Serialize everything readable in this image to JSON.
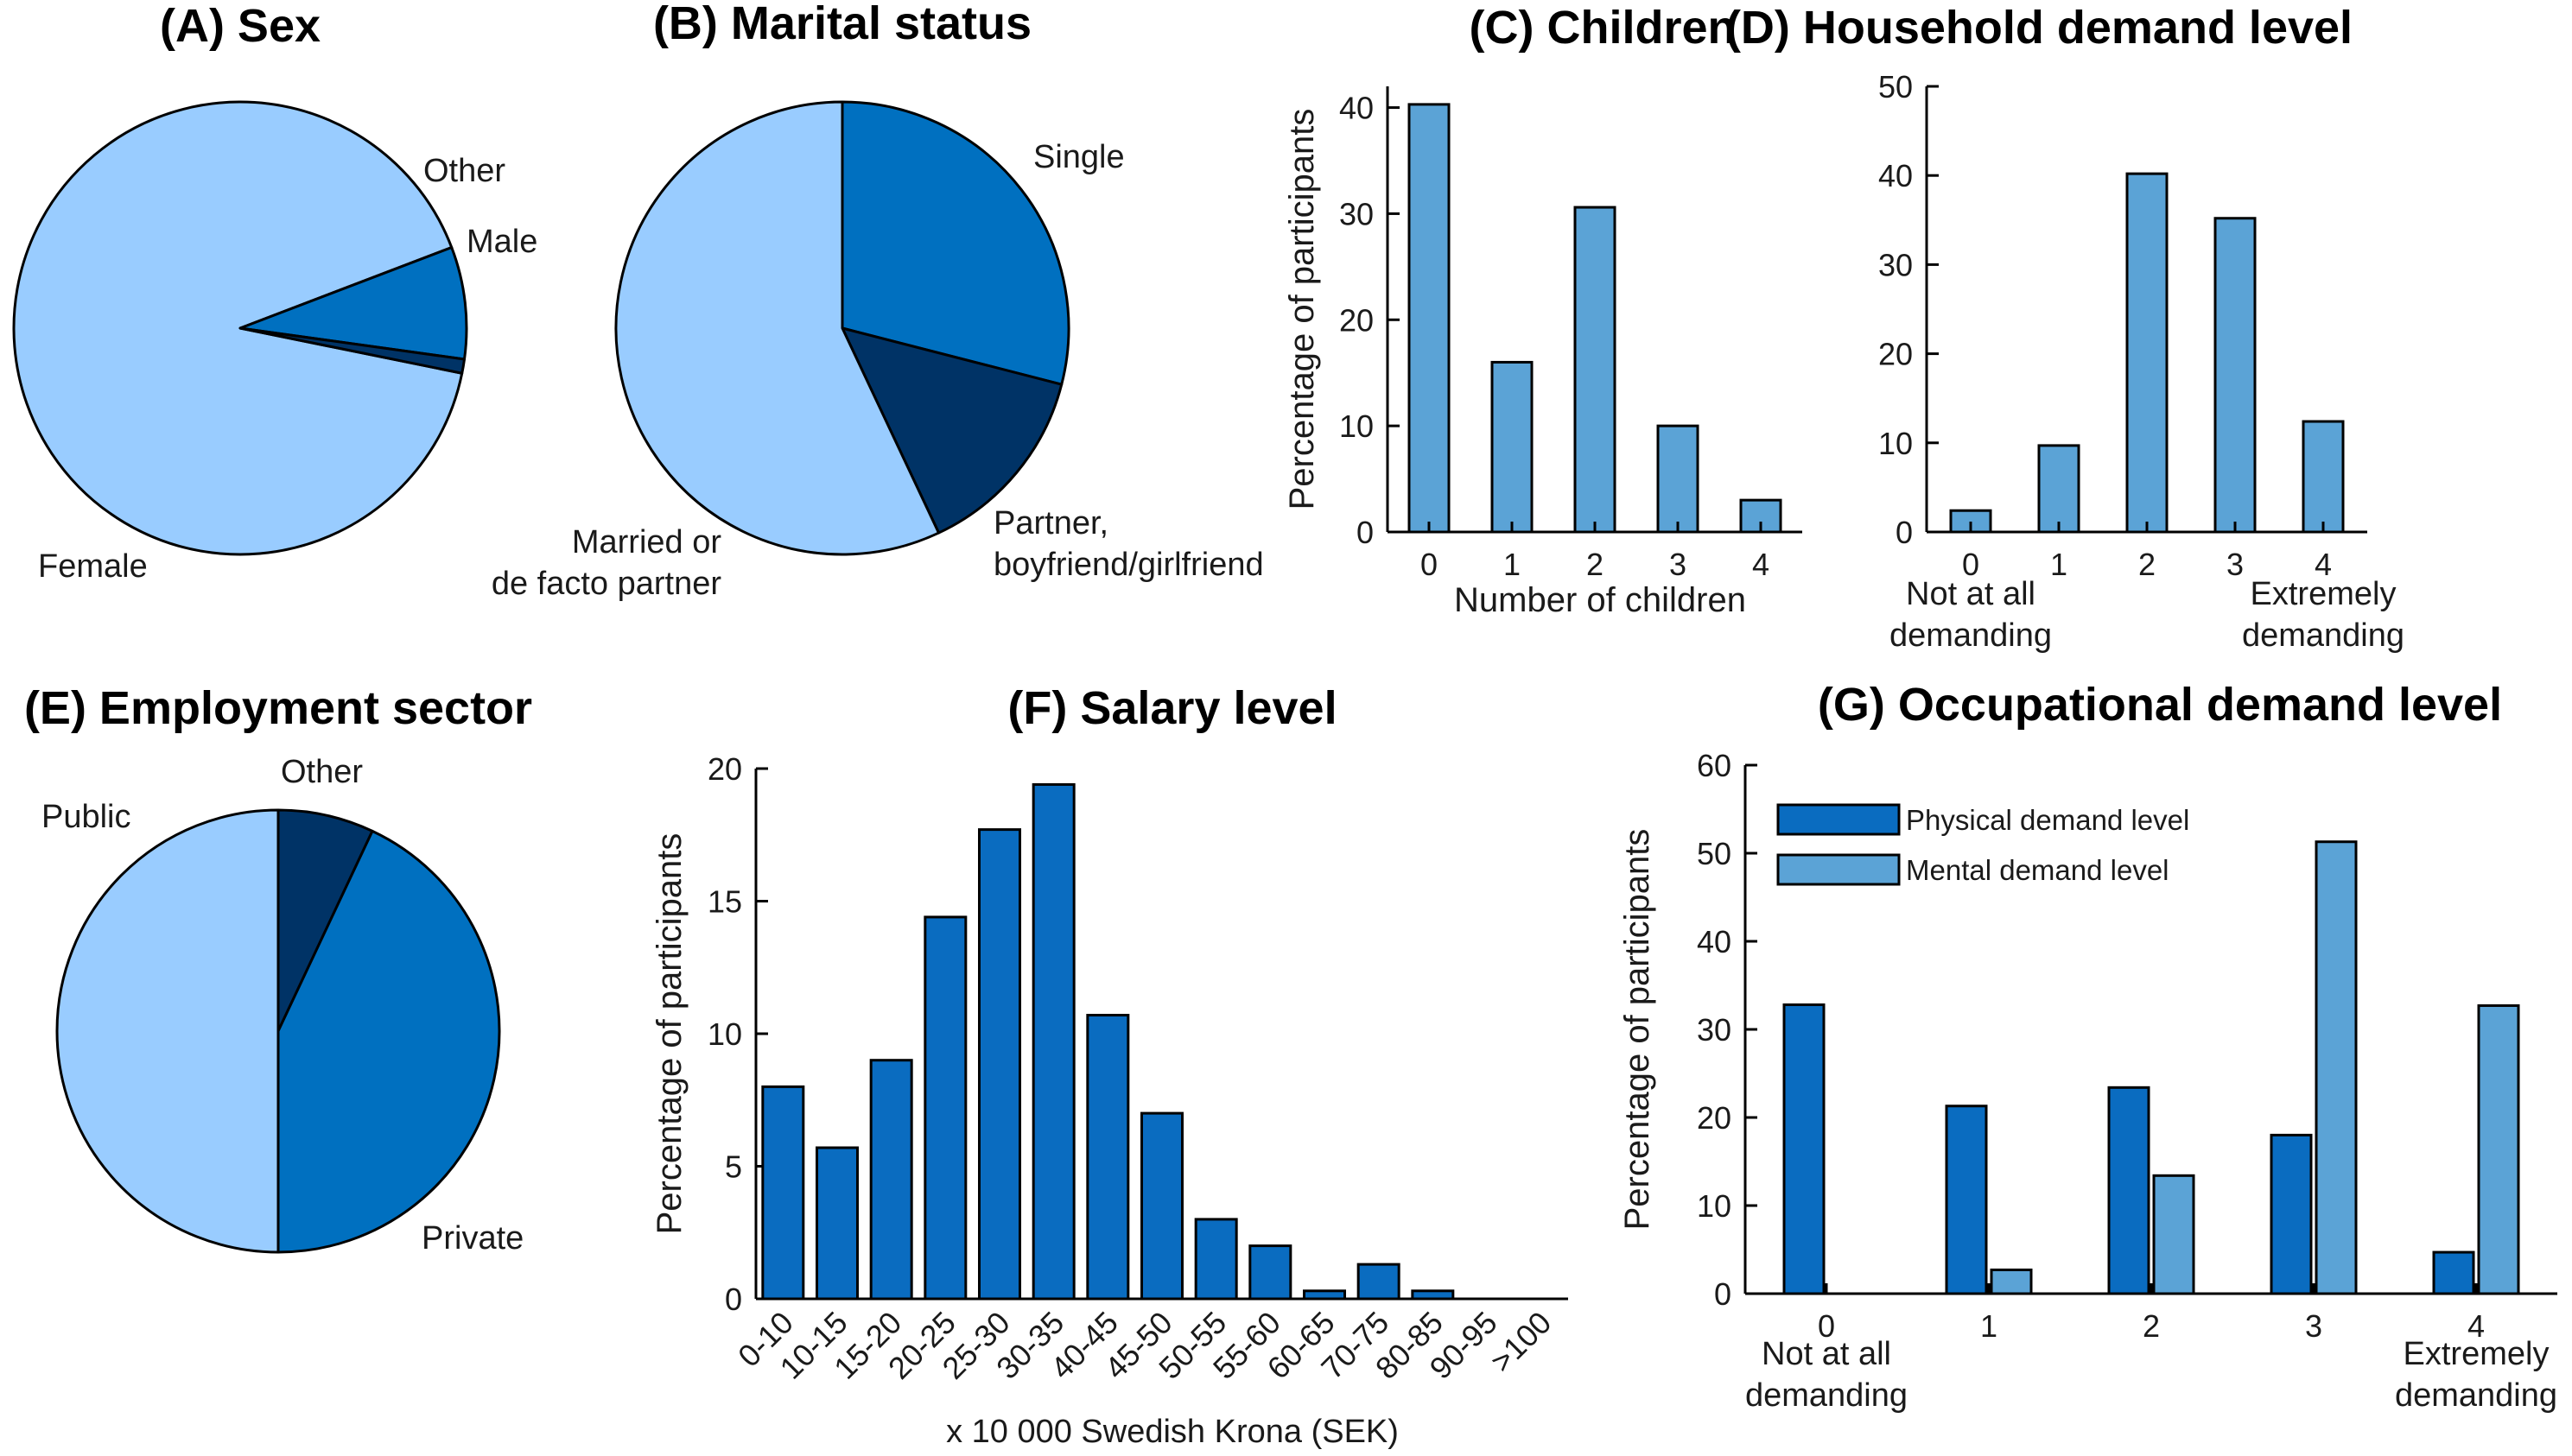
{
  "colors": {
    "light": "#99ccff",
    "medium": "#0070c0",
    "dark": "#003366",
    "bar_light": "#5ba3d6",
    "bar_dark": "#0a6cc0",
    "stroke": "#000000"
  },
  "chart_data": [
    {
      "id": "A",
      "type": "pie",
      "title": "(A) Sex",
      "slices": [
        {
          "label": "Female",
          "value": 91,
          "color": "light"
        },
        {
          "label": "Male",
          "value": 8,
          "color": "medium"
        },
        {
          "label": "Other",
          "value": 1,
          "color": "dark"
        }
      ]
    },
    {
      "id": "B",
      "type": "pie",
      "title": "(B) Marital status",
      "slices": [
        {
          "label": "Single",
          "value": 29,
          "color": "medium"
        },
        {
          "label": "Partner,",
          "label2": "boyfriend/girlfriend",
          "value": 14,
          "color": "dark"
        },
        {
          "label": "Married or",
          "label2": "de facto partner",
          "value": 57,
          "color": "light"
        }
      ]
    },
    {
      "id": "C",
      "type": "bar",
      "title": "(C) Children",
      "categories": [
        "0",
        "1",
        "2",
        "3",
        "4"
      ],
      "values": [
        40.3,
        16,
        30.6,
        10,
        3
      ],
      "xlabel": "Number of children",
      "ylabel": "Percentage of participants",
      "ylim": [
        0,
        42
      ],
      "yticks": [
        0,
        10,
        20,
        30,
        40
      ]
    },
    {
      "id": "D",
      "type": "bar",
      "title": "(D) Household demand level",
      "categories": [
        "0",
        "1",
        "2",
        "3",
        "4"
      ],
      "values": [
        2.4,
        9.7,
        40.2,
        35.2,
        12.4
      ],
      "xlabel_left": [
        "Not at all",
        "demanding"
      ],
      "xlabel_right": [
        "Extremely",
        "demanding"
      ],
      "ylabel": "",
      "ylim": [
        0,
        50
      ],
      "yticks": [
        0,
        10,
        20,
        30,
        40,
        50
      ]
    },
    {
      "id": "E",
      "type": "pie",
      "title": "(E) Employment sector",
      "slices": [
        {
          "label": "Other",
          "value": 7,
          "color": "dark"
        },
        {
          "label": "Private",
          "value": 43,
          "color": "medium"
        },
        {
          "label": "Public",
          "value": 50,
          "color": "light"
        }
      ]
    },
    {
      "id": "F",
      "type": "bar",
      "title": "(F) Salary level",
      "categories": [
        "0-10",
        "10-15",
        "15-20",
        "20-25",
        "25-30",
        "30-35",
        "40-45",
        "45-50",
        "50-55",
        "55-60",
        "60-65",
        "70-75",
        "80-85",
        "90-95",
        ">100"
      ],
      "values": [
        8,
        5.7,
        9,
        14.4,
        17.7,
        19.4,
        10.7,
        7,
        3,
        2,
        0.3,
        1.3,
        0.3,
        0,
        0
      ],
      "xlabel": "x 10 000 Swedish Krona (SEK)",
      "ylabel": "Percentage of participants",
      "ylim": [
        0,
        20
      ],
      "yticks": [
        0,
        5,
        10,
        15,
        20
      ]
    },
    {
      "id": "G",
      "type": "bar",
      "title": "(G) Occupational demand level",
      "categories": [
        "0",
        "1",
        "2",
        "3",
        "4"
      ],
      "series": [
        {
          "name": "Physical demand level",
          "values": [
            32.8,
            21.3,
            23.4,
            18,
            4.7
          ],
          "color": "bar_dark"
        },
        {
          "name": "Mental demand level",
          "values": [
            0,
            2.7,
            13.4,
            51.3,
            32.7
          ],
          "color": "bar_light"
        }
      ],
      "xlabel_left": [
        "Not at all",
        "demanding"
      ],
      "xlabel_right": [
        "Extremely",
        "demanding"
      ],
      "ylabel": "Percentage of participants",
      "ylim": [
        0,
        60
      ],
      "yticks": [
        0,
        10,
        20,
        30,
        40,
        50,
        60
      ]
    }
  ]
}
